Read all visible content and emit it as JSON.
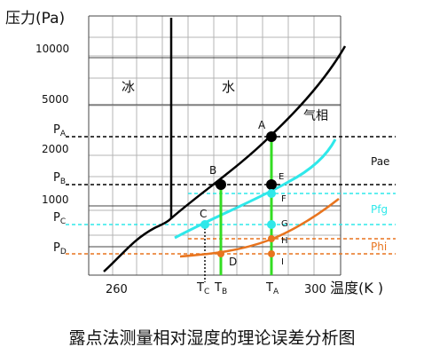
{
  "y_axis_title": "压力(Pa)",
  "x_axis_title": "温度(K )",
  "y_ticks": [
    "10000",
    "5000",
    "2000",
    "1000"
  ],
  "x_ticks": [
    "260",
    "300"
  ],
  "pressure_marks": {
    "A": "P",
    "B": "P",
    "C": "P",
    "D": "P",
    "sub_A": "A",
    "sub_B": "B",
    "sub_C": "C",
    "sub_D": "D"
  },
  "temp_marks": {
    "C": "T",
    "B": "T",
    "A": "T",
    "sub_C": "C",
    "sub_B": "B",
    "sub_A": "A"
  },
  "regions": {
    "ice": "冰",
    "water": "水",
    "vapor": "气相"
  },
  "point_labels": {
    "A": "A",
    "B": "B",
    "C": "C",
    "D": "D",
    "E": "E",
    "F": "F",
    "G": "G",
    "H": "H",
    "I": "I"
  },
  "curve_labels": {
    "pae": "Pae",
    "pfg": "Pfg",
    "phi": "Phi"
  },
  "colors": {
    "cyan": "#2fe8ea",
    "orange": "#e8741e",
    "green": "#33dd22",
    "black": "#000000"
  },
  "caption": "露点法测量相对湿度的理论误差分析图"
}
